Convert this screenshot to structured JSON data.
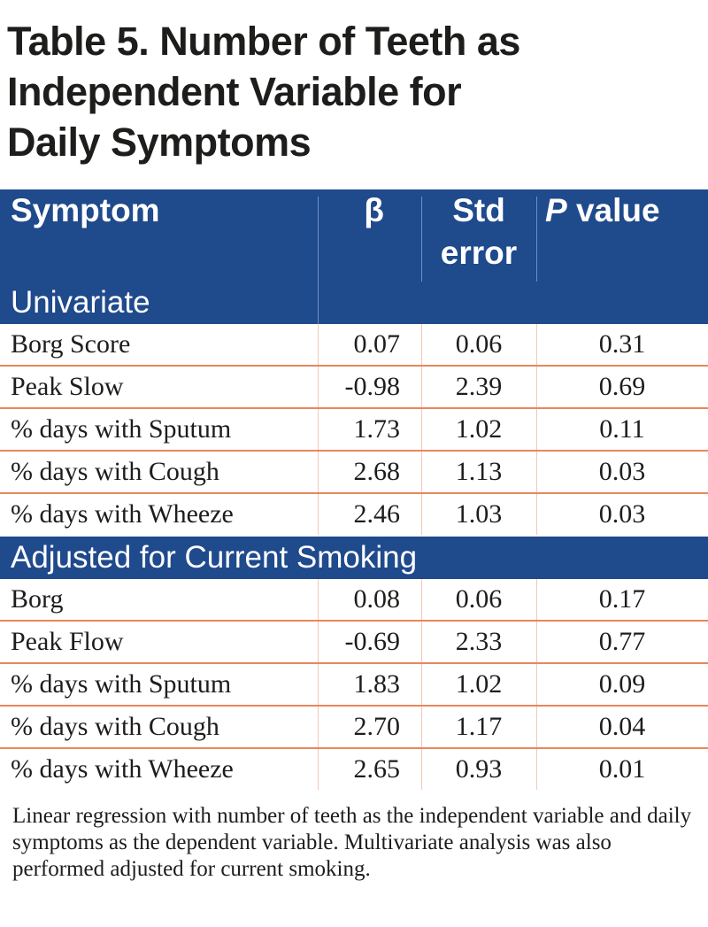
{
  "title_lines": [
    "Table 5. Number of Teeth as",
    "Independent Variable for",
    "Daily Symptoms"
  ],
  "header": {
    "symptom": "Symptom",
    "beta": "β",
    "std_error_line1": "Std",
    "std_error_line2": "error",
    "p_value_italic": "P",
    "p_value_rest": " value"
  },
  "sections": [
    {
      "label": "Univariate",
      "rows": [
        {
          "symptom": "Borg Score",
          "beta": "0.07",
          "std_error": "0.06",
          "p": "0.31"
        },
        {
          "symptom": "Peak Slow",
          "beta": "-0.98",
          "std_error": "2.39",
          "p": "0.69"
        },
        {
          "symptom": "% days with Sputum",
          "beta": "1.73",
          "std_error": "1.02",
          "p": "0.11"
        },
        {
          "symptom": "% days with Cough",
          "beta": "2.68",
          "std_error": "1.13",
          "p": "0.03"
        },
        {
          "symptom": "% days with Wheeze",
          "beta": "2.46",
          "std_error": "1.03",
          "p": "0.03"
        }
      ]
    },
    {
      "label": "Adjusted for Current Smoking",
      "rows": [
        {
          "symptom": "Borg",
          "beta": "0.08",
          "std_error": "0.06",
          "p": "0.17"
        },
        {
          "symptom": "Peak Flow",
          "beta": "-0.69",
          "std_error": "2.33",
          "p": "0.77"
        },
        {
          "symptom": "% days with Sputum",
          "beta": "1.83",
          "std_error": "1.02",
          "p": "0.09"
        },
        {
          "symptom": "% days with Cough",
          "beta": "2.70",
          "std_error": "1.17",
          "p": "0.04"
        },
        {
          "symptom": "% days with Wheeze",
          "beta": "2.65",
          "std_error": "0.93",
          "p": "0.01"
        }
      ]
    }
  ],
  "footnote": "Linear regression with number of teeth as the independent variable and daily symptoms as the dependent variable. Multivariate analysis was also performed adjusted for current smoking.",
  "colors": {
    "header_bg": "#1f4a8c",
    "row_divider": "#e8875a"
  }
}
